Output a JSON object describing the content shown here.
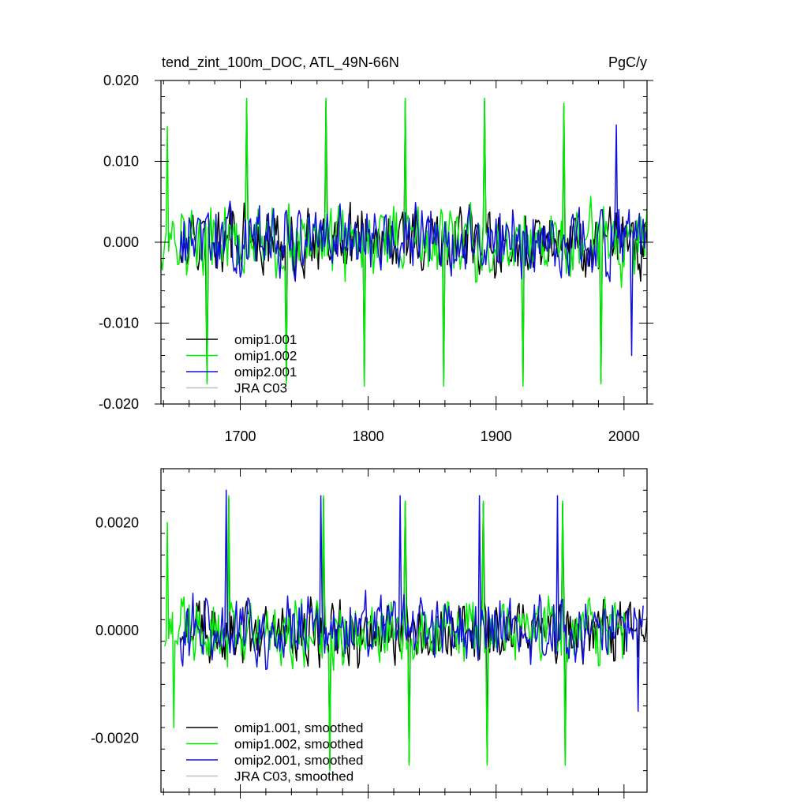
{
  "chart_data": [
    {
      "type": "line",
      "title_left": "tend_zint_100m_DOC, ATL_49N-66N",
      "title_right": "PgC/y",
      "xlabel": "",
      "ylabel": "",
      "xlim": [
        1638,
        2018
      ],
      "ylim": [
        -0.02,
        0.02
      ],
      "x_ticks": [
        1700,
        1800,
        1900,
        2000
      ],
      "x_tick_labels": [
        "1700",
        "1800",
        "1900",
        "2000"
      ],
      "y_ticks": [
        0.02,
        0.01,
        0.0,
        -0.01,
        -0.02
      ],
      "y_tick_labels": [
        "0.020",
        "0.010",
        "0.000",
        "-0.010",
        "-0.020"
      ],
      "legend_position": "bottom-left",
      "colors": {
        "omip1_001": "#000000",
        "omip1_002": "#00ee00",
        "omip2_001": "#1111dd",
        "jra": "#c0c0c0"
      },
      "series": [
        {
          "name": "omip1.001",
          "color": "#000000",
          "x_start": 1653,
          "x_end": 2018,
          "step": 1
        },
        {
          "name": "omip1.002",
          "color": "#00ee00",
          "x_start": 1638,
          "x_end": 2018,
          "step": 1,
          "notable_peaks": [
            [
              1643,
              0.0143
            ],
            [
              1705,
              0.0178
            ],
            [
              1767,
              0.0178
            ],
            [
              1829,
              0.0178
            ],
            [
              1891,
              0.0178
            ],
            [
              1953,
              0.0172
            ]
          ],
          "notable_troughs": [
            [
              1674,
              -0.0175
            ],
            [
              1736,
              -0.0175
            ],
            [
              1797,
              -0.0178
            ],
            [
              1859,
              -0.0178
            ],
            [
              1921,
              -0.0178
            ],
            [
              1982,
              -0.0175
            ]
          ]
        },
        {
          "name": "omip2.001",
          "color": "#1111dd",
          "x_start": 1653,
          "x_end": 2018,
          "step": 1,
          "notable_peaks": [
            [
              1994,
              0.0145
            ]
          ],
          "notable_troughs": [
            [
              2006,
              -0.014
            ]
          ]
        },
        {
          "name": "JRA C03",
          "color": "#c0c0c0",
          "x": [],
          "y": []
        }
      ]
    },
    {
      "type": "line",
      "title_left": "",
      "title_right": "",
      "xlabel": "",
      "ylabel": "",
      "xlim": [
        1638,
        2018
      ],
      "ylim": [
        -0.003,
        0.003
      ],
      "x_ticks": [
        1700,
        1800,
        1900,
        2000
      ],
      "x_tick_labels": [],
      "y_ticks": [
        0.002,
        0.0,
        -0.002
      ],
      "y_tick_labels": [
        "0.0020",
        "0.0000",
        "-0.0020"
      ],
      "legend_position": "bottom-left",
      "series": [
        {
          "name": "omip1.001, smoothed",
          "color": "#000000",
          "x_start": 1653,
          "x_end": 2018,
          "step": 1
        },
        {
          "name": "omip1.002, smoothed",
          "color": "#00ee00",
          "x_start": 1641,
          "x_end": 2002,
          "step": 1,
          "notable_peaks": [
            [
              1643,
              0.002
            ],
            [
              1691,
              0.0025
            ],
            [
              1765,
              0.0025
            ],
            [
              1829,
              0.0024
            ],
            [
              1890,
              0.0024
            ],
            [
              1952,
              0.0024
            ]
          ],
          "notable_troughs": [
            [
              1648,
              -0.0018
            ],
            [
              1770,
              -0.0026
            ],
            [
              1832,
              -0.0025
            ],
            [
              1893,
              -0.0025
            ],
            [
              1954,
              -0.0025
            ]
          ]
        },
        {
          "name": "omip2.001, smoothed",
          "color": "#1111dd",
          "x_start": 1653,
          "x_end": 2015,
          "step": 1,
          "notable_peaks": [
            [
              1689,
              0.0026
            ],
            [
              1763,
              0.0025
            ],
            [
              1825,
              0.0025
            ],
            [
              1887,
              0.0025
            ],
            [
              1948,
              0.0025
            ]
          ],
          "notable_troughs": [
            [
              2011,
              -0.0015
            ]
          ]
        },
        {
          "name": "JRA C03, smoothed",
          "color": "#c0c0c0",
          "x": [],
          "y": []
        }
      ]
    }
  ]
}
